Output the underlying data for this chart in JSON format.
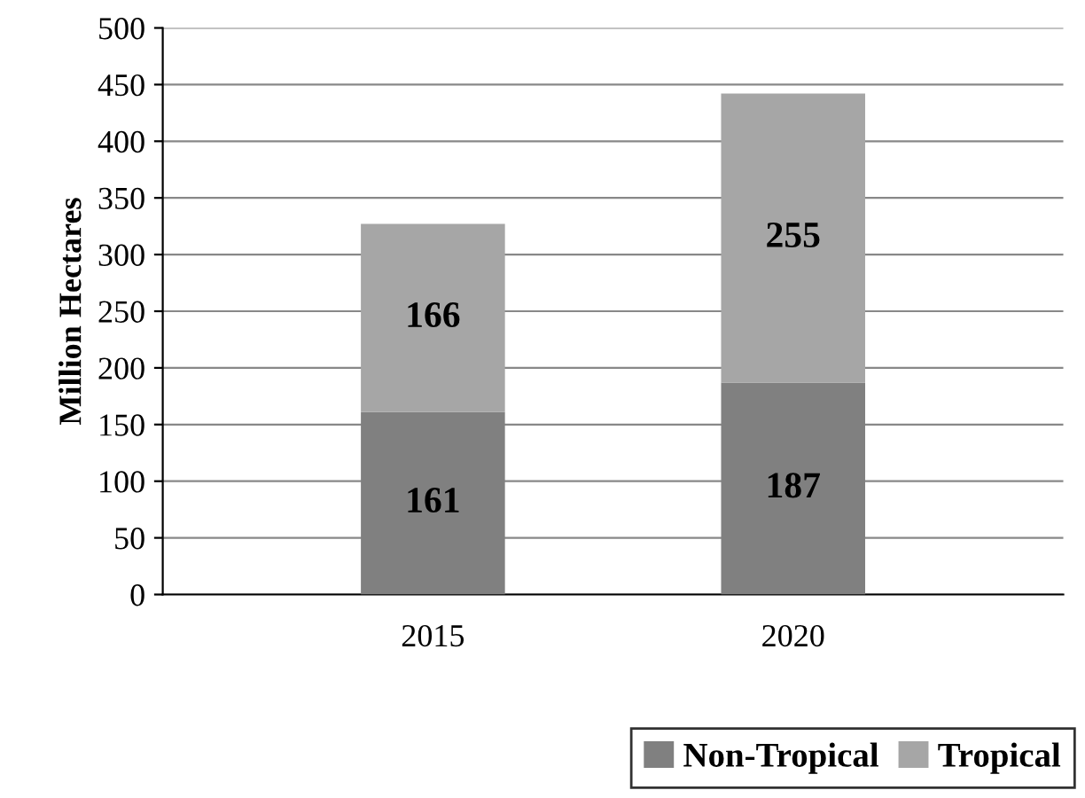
{
  "chart_data": {
    "type": "bar",
    "stacked": true,
    "ylabel": "Million Hectares",
    "categories": [
      "2015",
      "2020"
    ],
    "series": [
      {
        "name": "Non-Tropical",
        "color": "#808080",
        "values": [
          161,
          187
        ]
      },
      {
        "name": "Tropical",
        "color": "#a6a6a6",
        "values": [
          166,
          255
        ]
      }
    ],
    "ylim": [
      0,
      500
    ],
    "yticks": [
      0,
      50,
      100,
      150,
      200,
      250,
      300,
      350,
      400,
      450,
      500
    ],
    "grid": "y",
    "data_labels": true,
    "legend": "bottom right"
  }
}
